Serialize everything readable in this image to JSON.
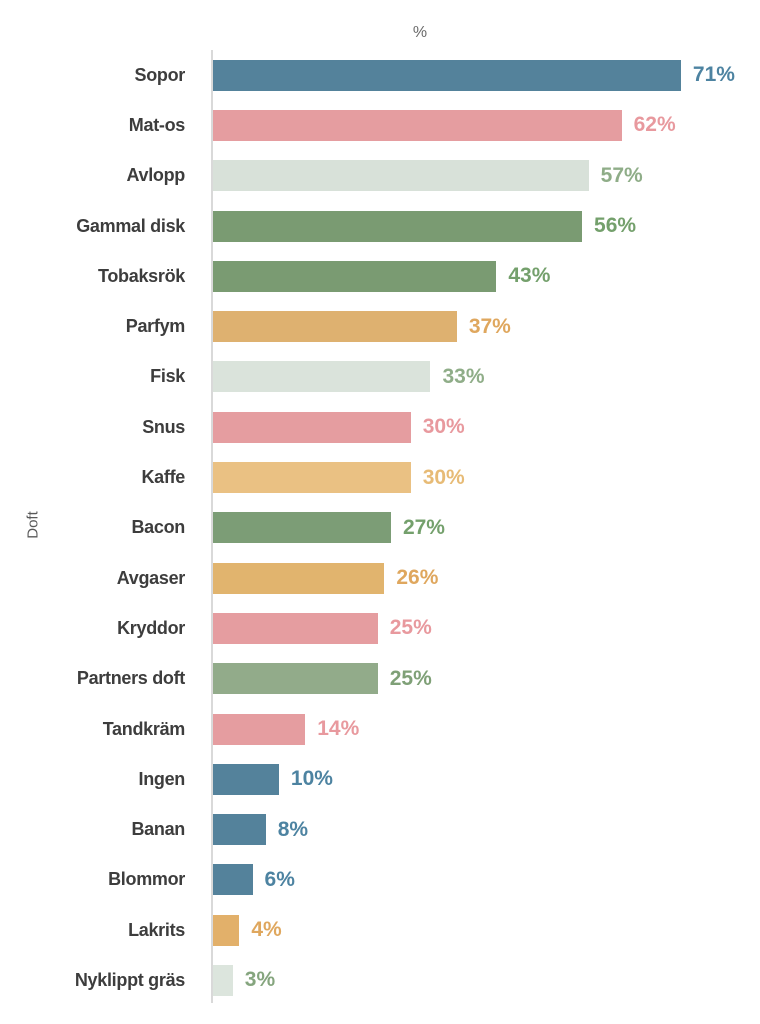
{
  "chart_data": {
    "type": "bar",
    "orientation": "horizontal",
    "title": "%",
    "xlabel": "%",
    "ylabel": "Doft",
    "xlim": [
      0,
      83
    ],
    "grid": false,
    "legend": "none",
    "categories": [
      "Sopor",
      "Mat-os",
      "Avlopp",
      "Gammal disk",
      "Tobaksrök",
      "Parfym",
      "Fisk",
      "Snus",
      "Kaffe",
      "Bacon",
      "Avgaser",
      "Kryddor",
      "Partners doft",
      "Tandkräm",
      "Ingen",
      "Banan",
      "Blommor",
      "Lakrits",
      "Nyklippt gräs"
    ],
    "values": [
      71,
      62,
      57,
      56,
      43,
      37,
      33,
      30,
      30,
      27,
      26,
      25,
      25,
      14,
      10,
      8,
      6,
      4,
      3
    ],
    "bars": [
      {
        "label": "Sopor",
        "value": 71,
        "display": "71%",
        "bar_color": "#54829b",
        "label_color": "#4d83a1"
      },
      {
        "label": "Mat-os",
        "value": 62,
        "display": "62%",
        "bar_color": "#e59da0",
        "label_color": "#e8999e"
      },
      {
        "label": "Avlopp",
        "value": 57,
        "display": "57%",
        "bar_color": "#d8e1d9",
        "label_color": "#8fad88"
      },
      {
        "label": "Gammal disk",
        "value": 56,
        "display": "56%",
        "bar_color": "#7a9b72",
        "label_color": "#74a06c"
      },
      {
        "label": "Tobaksrök",
        "value": 43,
        "display": "43%",
        "bar_color": "#7a9b72",
        "label_color": "#74a06c"
      },
      {
        "label": "Parfym",
        "value": 37,
        "display": "37%",
        "bar_color": "#deb170",
        "label_color": "#dfa75e"
      },
      {
        "label": "Fisk",
        "value": 33,
        "display": "33%",
        "bar_color": "#dae3db",
        "label_color": "#8fad88"
      },
      {
        "label": "Snus",
        "value": 30,
        "display": "30%",
        "bar_color": "#e59da0",
        "label_color": "#e8999e"
      },
      {
        "label": "Kaffe",
        "value": 30,
        "display": "30%",
        "bar_color": "#eac183",
        "label_color": "#e7bb76"
      },
      {
        "label": "Bacon",
        "value": 27,
        "display": "27%",
        "bar_color": "#7c9d76",
        "label_color": "#74a06c"
      },
      {
        "label": "Avgaser",
        "value": 26,
        "display": "26%",
        "bar_color": "#e1b46e",
        "label_color": "#dfa75e"
      },
      {
        "label": "Kryddor",
        "value": 25,
        "display": "25%",
        "bar_color": "#e59da0",
        "label_color": "#e8999e"
      },
      {
        "label": "Partners doft",
        "value": 25,
        "display": "25%",
        "bar_color": "#92ab8a",
        "label_color": "#7fa077"
      },
      {
        "label": "Tandkräm",
        "value": 14,
        "display": "14%",
        "bar_color": "#e59da0",
        "label_color": "#e8999e"
      },
      {
        "label": "Ingen",
        "value": 10,
        "display": "10%",
        "bar_color": "#54829b",
        "label_color": "#4d83a1"
      },
      {
        "label": "Banan",
        "value": 8,
        "display": "8%",
        "bar_color": "#54829b",
        "label_color": "#4d83a1"
      },
      {
        "label": "Blommor",
        "value": 6,
        "display": "6%",
        "bar_color": "#54829b",
        "label_color": "#4d83a1"
      },
      {
        "label": "Lakrits",
        "value": 4,
        "display": "4%",
        "bar_color": "#e2b06a",
        "label_color": "#dfa75e"
      },
      {
        "label": "Nyklippt gräs",
        "value": 3,
        "display": "3%",
        "bar_color": "#dce5dd",
        "label_color": "#85a57e"
      }
    ]
  }
}
